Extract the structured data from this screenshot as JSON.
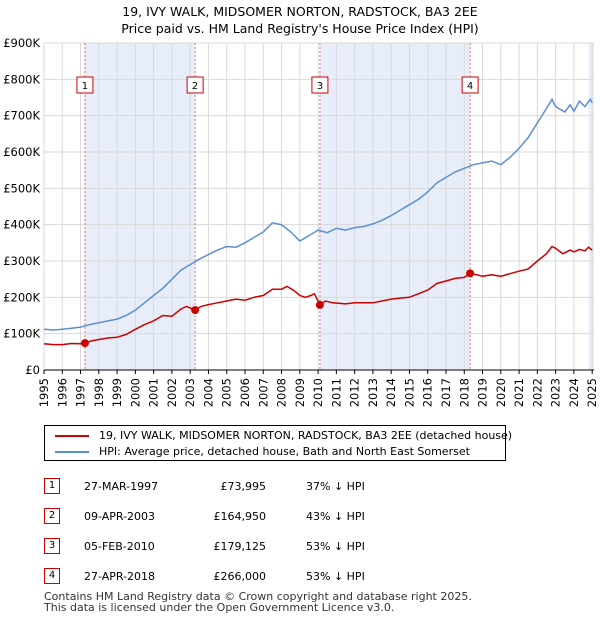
{
  "title_line1": "19, IVY WALK, MIDSOMER NORTON, RADSTOCK, BA3 2EE",
  "title_line2": "Price paid vs. HM Land Registry's House Price Index (HPI)",
  "colors": {
    "property": "#cc0000",
    "hpi": "#5b8fcf",
    "shade": "#e8eef9",
    "grid": "#d9d9d9",
    "marker_line": "#e57373"
  },
  "chart_data": {
    "type": "line",
    "title": "Price paid vs. HM Land Registry's House Price Index (HPI)",
    "xlabel": "",
    "ylabel": "",
    "xlim": [
      1995,
      2025.1
    ],
    "ylim": [
      0,
      900000
    ],
    "yticks": [
      {
        "value": 0,
        "label": "£0"
      },
      {
        "value": 100000,
        "label": "£100K"
      },
      {
        "value": 200000,
        "label": "£200K"
      },
      {
        "value": 300000,
        "label": "£300K"
      },
      {
        "value": 400000,
        "label": "£400K"
      },
      {
        "value": 500000,
        "label": "£500K"
      },
      {
        "value": 600000,
        "label": "£600K"
      },
      {
        "value": 700000,
        "label": "£700K"
      },
      {
        "value": 800000,
        "label": "£800K"
      },
      {
        "value": 900000,
        "label": "£900K"
      }
    ],
    "xticks": [
      1995,
      1996,
      1997,
      1998,
      1999,
      2000,
      2001,
      2002,
      2003,
      2004,
      2005,
      2006,
      2007,
      2008,
      2009,
      2010,
      2011,
      2012,
      2013,
      2014,
      2015,
      2016,
      2017,
      2018,
      2019,
      2020,
      2021,
      2022,
      2023,
      2024,
      2025
    ],
    "grid": true,
    "legend_position": "below",
    "series": [
      {
        "name": "19, IVY WALK, MIDSOMER NORTON, RADSTOCK, BA3 2EE (detached house)",
        "color": "#cc0000",
        "points": [
          [
            1995.0,
            72000
          ],
          [
            1995.5,
            70000
          ],
          [
            1996.0,
            70000
          ],
          [
            1996.5,
            73000
          ],
          [
            1997.0,
            72000
          ],
          [
            1997.24,
            73995
          ],
          [
            1997.6,
            80000
          ],
          [
            1998.0,
            84000
          ],
          [
            1998.5,
            88000
          ],
          [
            1999.0,
            90000
          ],
          [
            1999.5,
            98000
          ],
          [
            2000.0,
            112000
          ],
          [
            2000.5,
            125000
          ],
          [
            2001.0,
            135000
          ],
          [
            2001.5,
            150000
          ],
          [
            2002.0,
            148000
          ],
          [
            2002.5,
            168000
          ],
          [
            2002.8,
            175000
          ],
          [
            2003.27,
            164950
          ],
          [
            2003.6,
            175000
          ],
          [
            2004.0,
            180000
          ],
          [
            2004.5,
            185000
          ],
          [
            2005.0,
            190000
          ],
          [
            2005.5,
            195000
          ],
          [
            2006.0,
            192000
          ],
          [
            2006.5,
            200000
          ],
          [
            2007.0,
            205000
          ],
          [
            2007.5,
            222000
          ],
          [
            2008.0,
            222000
          ],
          [
            2008.3,
            230000
          ],
          [
            2008.7,
            218000
          ],
          [
            2009.0,
            205000
          ],
          [
            2009.3,
            200000
          ],
          [
            2009.6,
            205000
          ],
          [
            2009.8,
            210000
          ],
          [
            2010.1,
            179125
          ],
          [
            2010.4,
            190000
          ],
          [
            2010.8,
            185000
          ],
          [
            2011.5,
            182000
          ],
          [
            2012.0,
            185000
          ],
          [
            2012.5,
            185000
          ],
          [
            2013.0,
            185000
          ],
          [
            2013.5,
            190000
          ],
          [
            2014.0,
            195000
          ],
          [
            2014.5,
            198000
          ],
          [
            2015.0,
            200000
          ],
          [
            2015.5,
            210000
          ],
          [
            2016.0,
            220000
          ],
          [
            2016.5,
            238000
          ],
          [
            2017.0,
            245000
          ],
          [
            2017.5,
            252000
          ],
          [
            2018.0,
            255000
          ],
          [
            2018.32,
            266000
          ],
          [
            2018.7,
            262000
          ],
          [
            2019.0,
            258000
          ],
          [
            2019.5,
            262000
          ],
          [
            2020.0,
            258000
          ],
          [
            2020.5,
            265000
          ],
          [
            2021.0,
            272000
          ],
          [
            2021.5,
            278000
          ],
          [
            2022.0,
            300000
          ],
          [
            2022.5,
            320000
          ],
          [
            2022.8,
            340000
          ],
          [
            2023.0,
            335000
          ],
          [
            2023.4,
            320000
          ],
          [
            2023.8,
            330000
          ],
          [
            2024.0,
            325000
          ],
          [
            2024.3,
            332000
          ],
          [
            2024.6,
            328000
          ],
          [
            2024.8,
            338000
          ],
          [
            2025.0,
            330000
          ]
        ]
      },
      {
        "name": "HPI: Average price, detached house, Bath and North East Somerset",
        "color": "#5b8fcf",
        "points": [
          [
            1995.0,
            112000
          ],
          [
            1995.5,
            110000
          ],
          [
            1996.0,
            112000
          ],
          [
            1996.5,
            115000
          ],
          [
            1997.0,
            118000
          ],
          [
            1997.5,
            125000
          ],
          [
            1998.0,
            130000
          ],
          [
            1998.5,
            135000
          ],
          [
            1999.0,
            140000
          ],
          [
            1999.5,
            150000
          ],
          [
            2000.0,
            165000
          ],
          [
            2000.5,
            185000
          ],
          [
            2001.0,
            205000
          ],
          [
            2001.5,
            225000
          ],
          [
            2002.0,
            250000
          ],
          [
            2002.5,
            275000
          ],
          [
            2003.0,
            290000
          ],
          [
            2003.5,
            305000
          ],
          [
            2004.0,
            318000
          ],
          [
            2004.5,
            330000
          ],
          [
            2005.0,
            340000
          ],
          [
            2005.5,
            338000
          ],
          [
            2006.0,
            350000
          ],
          [
            2006.5,
            365000
          ],
          [
            2007.0,
            380000
          ],
          [
            2007.5,
            405000
          ],
          [
            2008.0,
            400000
          ],
          [
            2008.5,
            380000
          ],
          [
            2009.0,
            355000
          ],
          [
            2009.5,
            370000
          ],
          [
            2010.0,
            385000
          ],
          [
            2010.5,
            378000
          ],
          [
            2011.0,
            390000
          ],
          [
            2011.5,
            385000
          ],
          [
            2012.0,
            392000
          ],
          [
            2012.5,
            395000
          ],
          [
            2013.0,
            402000
          ],
          [
            2013.5,
            412000
          ],
          [
            2014.0,
            425000
          ],
          [
            2014.5,
            440000
          ],
          [
            2015.0,
            455000
          ],
          [
            2015.5,
            470000
          ],
          [
            2016.0,
            490000
          ],
          [
            2016.5,
            515000
          ],
          [
            2017.0,
            530000
          ],
          [
            2017.5,
            545000
          ],
          [
            2018.0,
            555000
          ],
          [
            2018.5,
            565000
          ],
          [
            2019.0,
            570000
          ],
          [
            2019.5,
            575000
          ],
          [
            2020.0,
            565000
          ],
          [
            2020.5,
            585000
          ],
          [
            2021.0,
            610000
          ],
          [
            2021.5,
            640000
          ],
          [
            2022.0,
            680000
          ],
          [
            2022.5,
            720000
          ],
          [
            2022.8,
            745000
          ],
          [
            2023.0,
            725000
          ],
          [
            2023.5,
            710000
          ],
          [
            2023.8,
            730000
          ],
          [
            2024.0,
            712000
          ],
          [
            2024.3,
            740000
          ],
          [
            2024.6,
            725000
          ],
          [
            2024.9,
            745000
          ],
          [
            2025.0,
            735000
          ]
        ]
      }
    ],
    "sales": [
      {
        "num": "1",
        "x": 1997.24,
        "value": 73995
      },
      {
        "num": "2",
        "x": 2003.27,
        "value": 164950
      },
      {
        "num": "3",
        "x": 2010.1,
        "value": 179125
      },
      {
        "num": "4",
        "x": 2018.32,
        "value": 266000
      }
    ],
    "shaded_ranges": [
      [
        1997.24,
        2003.27
      ],
      [
        2010.1,
        2018.32
      ],
      [
        2024.8,
        2025.1
      ]
    ]
  },
  "legend": {
    "property_label": "19, IVY WALK, MIDSOMER NORTON, RADSTOCK, BA3 2EE (detached house)",
    "hpi_label": "HPI: Average price, detached house, Bath and North East Somerset"
  },
  "sales_table": [
    {
      "num": "1",
      "date": "27-MAR-1997",
      "price": "£73,995",
      "hpi": "37% ↓ HPI"
    },
    {
      "num": "2",
      "date": "09-APR-2003",
      "price": "£164,950",
      "hpi": "43% ↓ HPI"
    },
    {
      "num": "3",
      "date": "05-FEB-2010",
      "price": "£179,125",
      "hpi": "53% ↓ HPI"
    },
    {
      "num": "4",
      "date": "27-APR-2018",
      "price": "£266,000",
      "hpi": "53% ↓ HPI"
    }
  ],
  "footer": {
    "line1": "Contains HM Land Registry data © Crown copyright and database right 2025.",
    "line2": "This data is licensed under the Open Government Licence v3.0."
  }
}
